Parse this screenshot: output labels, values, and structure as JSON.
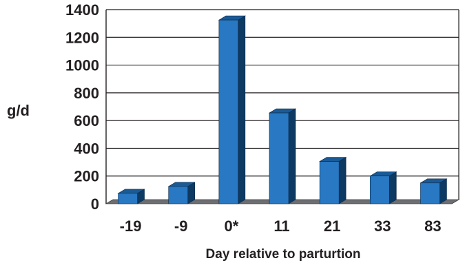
{
  "chart_data": {
    "type": "bar",
    "title": "",
    "xlabel": "Day relative to parturtion",
    "ylabel": "g/d",
    "categories": [
      "-19",
      "-9",
      "0*",
      "11",
      "21",
      "33",
      "83"
    ],
    "values": [
      75,
      125,
      1325,
      655,
      305,
      200,
      150
    ],
    "ylim": [
      0,
      1400
    ],
    "yticks": [
      "0",
      "200",
      "400",
      "600",
      "800",
      "1000",
      "1200",
      "1400"
    ],
    "grid": true,
    "bar_style": "3d",
    "colors": {
      "bar_front": "#2878c3",
      "bar_side": "#0d3a63",
      "bar_top": "#1a5a96",
      "floor": "#6d6e71",
      "grid": "#231f20",
      "text": "#231f20"
    }
  }
}
